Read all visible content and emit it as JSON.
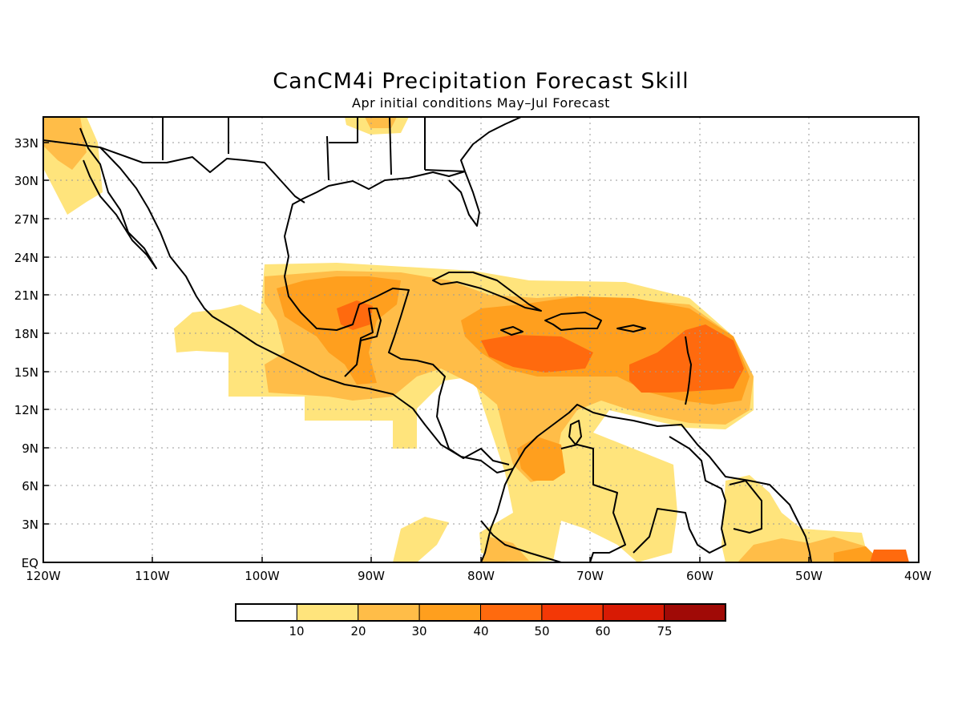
{
  "title": "CanCM4i Precipitation Forecast Skill",
  "subtitle": "Apr initial conditions   May–Jul Forecast",
  "axes": {
    "lat_labels": [
      "33N",
      "30N",
      "27N",
      "24N",
      "21N",
      "18N",
      "15N",
      "12N",
      "9N",
      "6N",
      "3N",
      "EQ"
    ],
    "lon_labels": [
      "120W",
      "110W",
      "100W",
      "90W",
      "80W",
      "70W",
      "60W",
      "50W",
      "40W"
    ]
  },
  "legend": {
    "colors": [
      "#ffffff",
      "#ffe47c",
      "#ffbd48",
      "#ff9f1e",
      "#ff6a0e",
      "#f33806",
      "#d81a04",
      "#a00a06"
    ],
    "labels": [
      "10",
      "20",
      "30",
      "40",
      "50",
      "60",
      "75"
    ]
  },
  "colors": {
    "level1": "#ffe47c",
    "level2": "#ffbd48",
    "level3": "#ff9f1e",
    "level4": "#ff6a0e"
  }
}
